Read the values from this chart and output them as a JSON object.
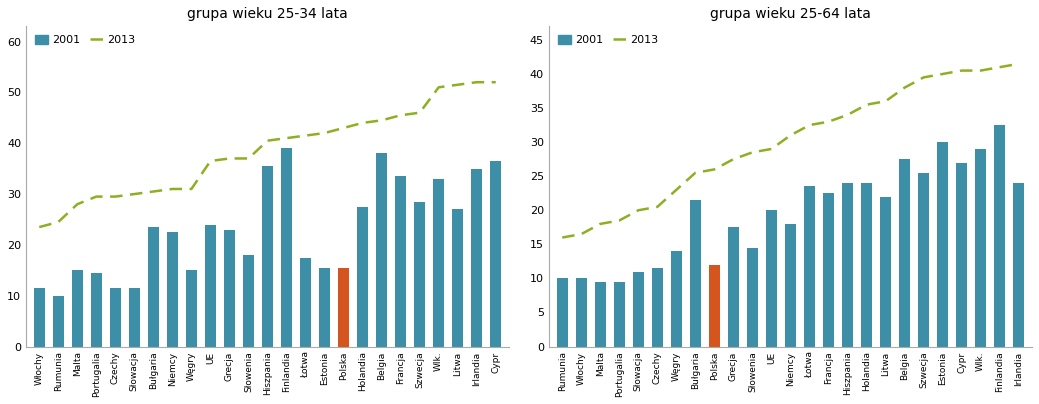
{
  "chart1": {
    "title": "grupa wieku 25-34 lata",
    "categories": [
      "Włochy",
      "Rumunia",
      "Malta",
      "Portugalia",
      "Czechy",
      "Słowacja",
      "Bułgaria",
      "Niemcy",
      "Węgry",
      "UE",
      "Grecja",
      "Słowenia",
      "Hiszpania",
      "Finlandia",
      "Łotwa",
      "Estonia",
      "Polska",
      "Holandia",
      "Belgia",
      "Francja",
      "Szwecja",
      "Wlk.",
      "Litwa",
      "Irlandia",
      "Cypr"
    ],
    "values_2001": [
      11.5,
      10.0,
      15.0,
      14.5,
      11.5,
      11.5,
      23.5,
      22.5,
      15.0,
      24.0,
      23.0,
      18.0,
      35.5,
      39.0,
      17.5,
      15.5,
      15.5,
      27.5,
      38.0,
      33.5,
      28.5,
      33.0,
      27.0,
      35.0,
      36.5
    ],
    "values_2013": [
      23.5,
      24.5,
      28.0,
      29.5,
      29.5,
      30.0,
      30.5,
      31.0,
      31.0,
      36.5,
      37.0,
      37.0,
      40.5,
      41.0,
      41.5,
      42.0,
      43.0,
      44.0,
      44.5,
      45.5,
      46.0,
      51.0,
      51.5,
      52.0,
      52.0
    ],
    "highlight_index": 16,
    "bar_color": "#3d8fa8",
    "highlight_color": "#d4561e",
    "line_color": "#8db022",
    "ylim": [
      0,
      63
    ],
    "yticks": [
      0,
      10,
      20,
      30,
      40,
      50,
      60
    ]
  },
  "chart2": {
    "title": "grupa wieku 25-64 lata",
    "categories": [
      "Rumunia",
      "Włochy",
      "Malta",
      "Portugalia",
      "Słowacja",
      "Czechy",
      "Węgry",
      "Bułgaria",
      "Polska",
      "Grecja",
      "Słowenia",
      "UE",
      "Niemcy",
      "Łotwa",
      "Francja",
      "Hiszpania",
      "Holandia",
      "Litwa",
      "Belgia",
      "Szwecja",
      "Estonia",
      "Cypr",
      "Wlk.",
      "Finlandia",
      "Irlandia"
    ],
    "values_2001": [
      10.0,
      10.0,
      9.5,
      9.5,
      11.0,
      11.5,
      14.0,
      21.5,
      12.0,
      17.5,
      14.5,
      20.0,
      18.0,
      23.5,
      22.5,
      24.0,
      24.0,
      22.0,
      27.5,
      25.5,
      30.0,
      27.0,
      29.0,
      32.5,
      24.0
    ],
    "values_2013": [
      16.0,
      16.5,
      18.0,
      18.5,
      20.0,
      20.5,
      23.0,
      25.5,
      26.0,
      27.5,
      28.5,
      29.0,
      31.0,
      32.5,
      33.0,
      34.0,
      35.5,
      36.0,
      38.0,
      39.5,
      40.0,
      40.5,
      40.5,
      41.0,
      41.5
    ],
    "highlight_index": 8,
    "bar_color": "#3d8fa8",
    "highlight_color": "#d4561e",
    "line_color": "#8db022",
    "ylim": [
      0,
      47
    ],
    "yticks": [
      0,
      5,
      10,
      15,
      20,
      25,
      30,
      35,
      40,
      45
    ]
  }
}
